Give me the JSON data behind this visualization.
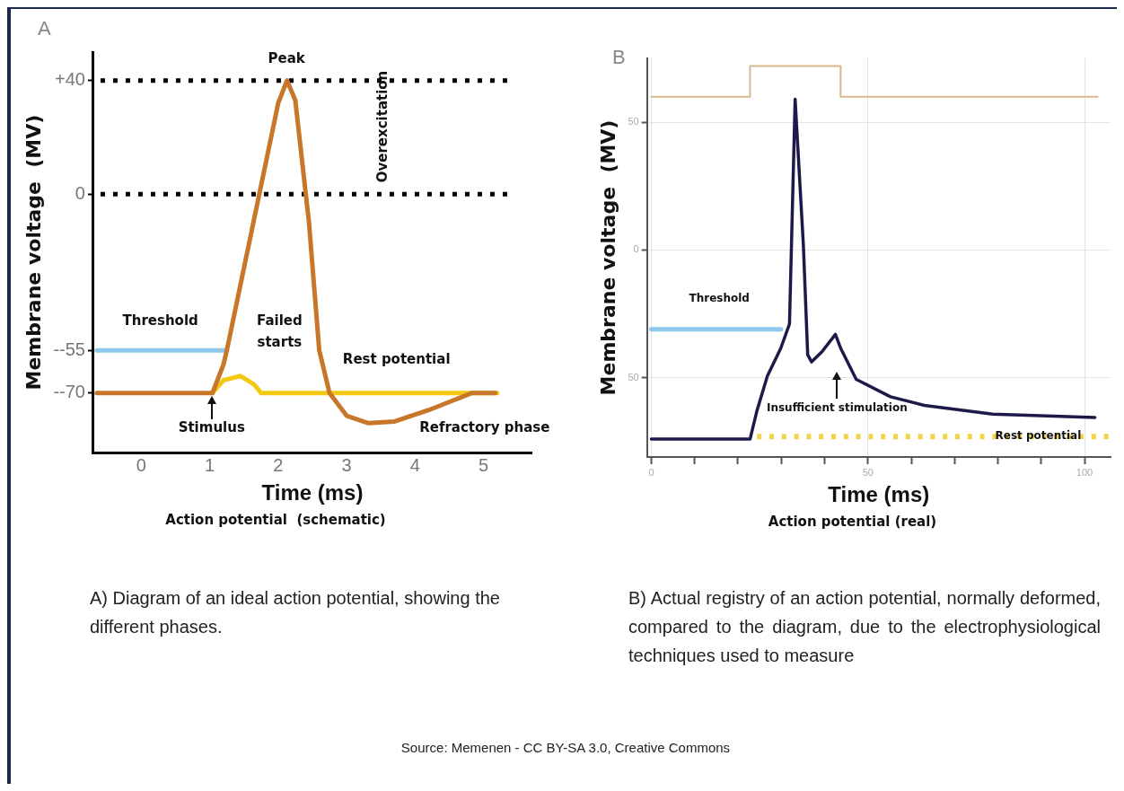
{
  "chart_data": [
    {
      "type": "line",
      "title": "Action potential  (schematic)",
      "xlabel": "Time (ms)",
      "ylabel": "Membrane voltage  (MV)",
      "xlim": [
        -0.7,
        5.7
      ],
      "xticks": [
        0,
        1,
        2,
        3,
        4,
        5
      ],
      "ylim": [
        -91,
        50
      ],
      "yticks": [
        {
          "value": 40,
          "label": "+40"
        },
        0,
        {
          "value": -55,
          "label": "--55"
        },
        {
          "value": -70,
          "label": "--70"
        }
      ],
      "grid": false,
      "marker": "none",
      "series": [
        {
          "color": "#c8772a",
          "x": [
            -0.65,
            1.04,
            1.2,
            1.25,
            2.0,
            2.13,
            2.25,
            2.45,
            2.6,
            2.75,
            3.0,
            3.32,
            3.7,
            4.2,
            4.83,
            5.17
          ],
          "values": [
            -70,
            -70,
            -60,
            -55,
            32,
            40,
            33,
            -10,
            -55,
            -70,
            -78,
            -80.6,
            -80,
            -76,
            -70,
            -70
          ]
        },
        {
          "color": "#f2c811",
          "x": [
            1.04,
            1.2,
            1.45,
            1.65,
            1.75,
            5.2
          ],
          "values": [
            -70,
            -65.5,
            -64,
            -67,
            -70,
            -70
          ]
        },
        {
          "color": "#8ec8ea",
          "x": [
            -0.65,
            1.25
          ],
          "values": [
            -55,
            -55
          ]
        }
      ],
      "ref_lines": [
        {
          "axis": "y",
          "value": 40,
          "color": "#000000",
          "line_style": "dotted"
        },
        {
          "axis": "y",
          "value": 0,
          "color": "#000000",
          "line_style": "dotted"
        }
      ],
      "annotations": [
        "A",
        "Peak",
        "Overexcitation",
        "Threshold",
        "Failed starts",
        "Rest potential",
        "Stimulus",
        "Refractory phase",
        "A) Diagram of an ideal action potential, showing the different phases."
      ]
    },
    {
      "type": "line",
      "title": "Action potential (real)",
      "xlabel": "Time (ms)",
      "ylabel": "Membrane voltage  (MV)",
      "xlim": [
        -1,
        106
      ],
      "xticks": [
        0,
        {
          "value": 10,
          "label": null
        },
        {
          "value": 20,
          "label": null
        },
        {
          "value": 30,
          "label": null
        },
        {
          "value": 40,
          "label": null
        },
        50,
        {
          "value": 60,
          "label": null
        },
        {
          "value": 70,
          "label": null
        },
        {
          "value": 80,
          "label": null
        },
        {
          "value": 90,
          "label": null
        },
        100
      ],
      "ylim": [
        -81,
        75
      ],
      "yticks": [
        {
          "value": 50,
          "label": "50"
        },
        0,
        {
          "value": -50,
          "label": "50"
        }
      ],
      "grid": true,
      "marker": "none",
      "series": [
        {
          "color": "#1c1a4a",
          "x": [
            0,
            22.8,
            24.4,
            26.8,
            29.9,
            31.9,
            33.2,
            35.1,
            36.1,
            37.0,
            39.4,
            42.5,
            43.7,
            47.3,
            55.2,
            63.0,
            78.8,
            102.4
          ],
          "values": [
            -74,
            -74,
            -62.8,
            -49.3,
            -38.4,
            -28.9,
            59,
            2,
            -41,
            -43.8,
            -39.8,
            -33,
            -38.4,
            -50.6,
            -57.4,
            -60.8,
            -64.2,
            -65.5
          ]
        },
        {
          "type": "step",
          "color": "#d9b98c",
          "x": [
            0,
            22.8,
            43.7,
            103
          ],
          "values": [
            60,
            72,
            60,
            60
          ]
        },
        {
          "color": "#8ec8ea",
          "x": [
            0,
            29.9
          ],
          "values": [
            -31,
            -31
          ]
        },
        {
          "color": "#f1d34a",
          "line_style": "dotted",
          "x": [
            24.4,
            105.5
          ],
          "values": [
            -73,
            -73
          ]
        }
      ],
      "annotations": [
        "B",
        "Threshold",
        "Insufficient stimulation",
        "Rest potential",
        "B) Actual registry of an action potential, normally deformed, compared to the diagram, due to the electrophysiological techniques used to measure"
      ]
    },
    {
      "type": "other",
      "annotations": [
        "Source: Memenen - CC BY-SA 3.0, Creative Commons"
      ]
    }
  ]
}
